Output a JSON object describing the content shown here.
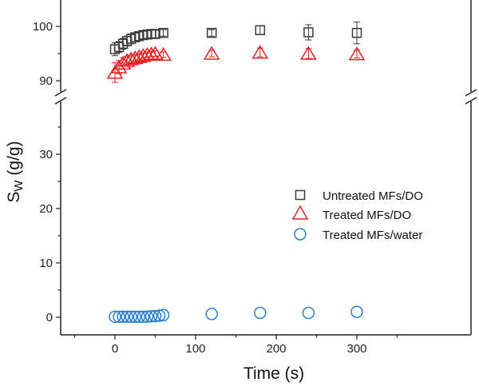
{
  "chart_data": {
    "type": "scatter",
    "title": "",
    "xlabel": "Time (s)",
    "ylabel": "Sw (g/g)",
    "ylabel_main": "S",
    "ylabel_sub": "W",
    "ylabel_unit": " (g/g)",
    "xlim": [
      -50,
      350
    ],
    "ylim_lower": [
      -2,
      42
    ],
    "ylim_upper": [
      87,
      104
    ],
    "broken_y_axis": true,
    "x_ticks": [
      "0",
      "100",
      "200",
      "300"
    ],
    "y_ticks_lower": [
      "0",
      "10",
      "20",
      "30"
    ],
    "y_ticks_upper": [
      "90",
      "100"
    ],
    "legend_position": "center-right",
    "grid": false,
    "series": [
      {
        "name": "Untreated MFs/DO",
        "marker": "square",
        "color": "#3a3a3a",
        "points": [
          {
            "x": 0,
            "y": 95.8,
            "err": 1.2
          },
          {
            "x": 5,
            "y": 96.2,
            "err": 1.0
          },
          {
            "x": 10,
            "y": 96.8,
            "err": 1.0
          },
          {
            "x": 15,
            "y": 97.3,
            "err": 0.9
          },
          {
            "x": 20,
            "y": 97.7,
            "err": 0.9
          },
          {
            "x": 25,
            "y": 98.0,
            "err": 0.8
          },
          {
            "x": 30,
            "y": 98.2,
            "err": 0.8
          },
          {
            "x": 35,
            "y": 98.4,
            "err": 0.7
          },
          {
            "x": 40,
            "y": 98.5,
            "err": 0.7
          },
          {
            "x": 45,
            "y": 98.6,
            "err": 0.7
          },
          {
            "x": 50,
            "y": 98.6,
            "err": 0.7
          },
          {
            "x": 60,
            "y": 98.8,
            "err": 0.6
          },
          {
            "x": 120,
            "y": 98.8,
            "err": 0.6
          },
          {
            "x": 180,
            "y": 99.3,
            "err": 0.8
          },
          {
            "x": 240,
            "y": 98.9,
            "err": 1.4
          },
          {
            "x": 300,
            "y": 98.8,
            "err": 2.0
          }
        ]
      },
      {
        "name": "Treated MFs/DO",
        "marker": "triangle",
        "color": "#e02424",
        "points": [
          {
            "x": 0,
            "y": 91.5,
            "err": 1.8
          },
          {
            "x": 5,
            "y": 92.5,
            "err": 1.2
          },
          {
            "x": 10,
            "y": 93.2,
            "err": 1.0
          },
          {
            "x": 15,
            "y": 93.7,
            "err": 0.8
          },
          {
            "x": 20,
            "y": 94.0,
            "err": 0.7
          },
          {
            "x": 25,
            "y": 94.2,
            "err": 0.6
          },
          {
            "x": 30,
            "y": 94.4,
            "err": 0.6
          },
          {
            "x": 35,
            "y": 94.6,
            "err": 0.5
          },
          {
            "x": 40,
            "y": 94.8,
            "err": 0.5
          },
          {
            "x": 45,
            "y": 94.9,
            "err": 0.5
          },
          {
            "x": 50,
            "y": 95.0,
            "err": 0.5
          },
          {
            "x": 60,
            "y": 94.8,
            "err": 0.5
          },
          {
            "x": 120,
            "y": 95.0,
            "err": 0.6
          },
          {
            "x": 180,
            "y": 95.2,
            "err": 0.8
          },
          {
            "x": 240,
            "y": 95.0,
            "err": 0.9
          },
          {
            "x": 300,
            "y": 94.9,
            "err": 0.7
          }
        ]
      },
      {
        "name": "Treated MFs/water",
        "marker": "circle",
        "color": "#2a7fd1",
        "points": [
          {
            "x": 0,
            "y": 0.1
          },
          {
            "x": 5,
            "y": 0.1
          },
          {
            "x": 10,
            "y": 0.1
          },
          {
            "x": 15,
            "y": 0.1
          },
          {
            "x": 20,
            "y": 0.1
          },
          {
            "x": 25,
            "y": 0.1
          },
          {
            "x": 30,
            "y": 0.1
          },
          {
            "x": 35,
            "y": 0.1
          },
          {
            "x": 40,
            "y": 0.1
          },
          {
            "x": 45,
            "y": 0.2
          },
          {
            "x": 50,
            "y": 0.2
          },
          {
            "x": 55,
            "y": 0.3
          },
          {
            "x": 60,
            "y": 0.4
          },
          {
            "x": 120,
            "y": 0.6
          },
          {
            "x": 180,
            "y": 0.8
          },
          {
            "x": 240,
            "y": 0.8
          },
          {
            "x": 300,
            "y": 1.0
          }
        ]
      }
    ]
  }
}
